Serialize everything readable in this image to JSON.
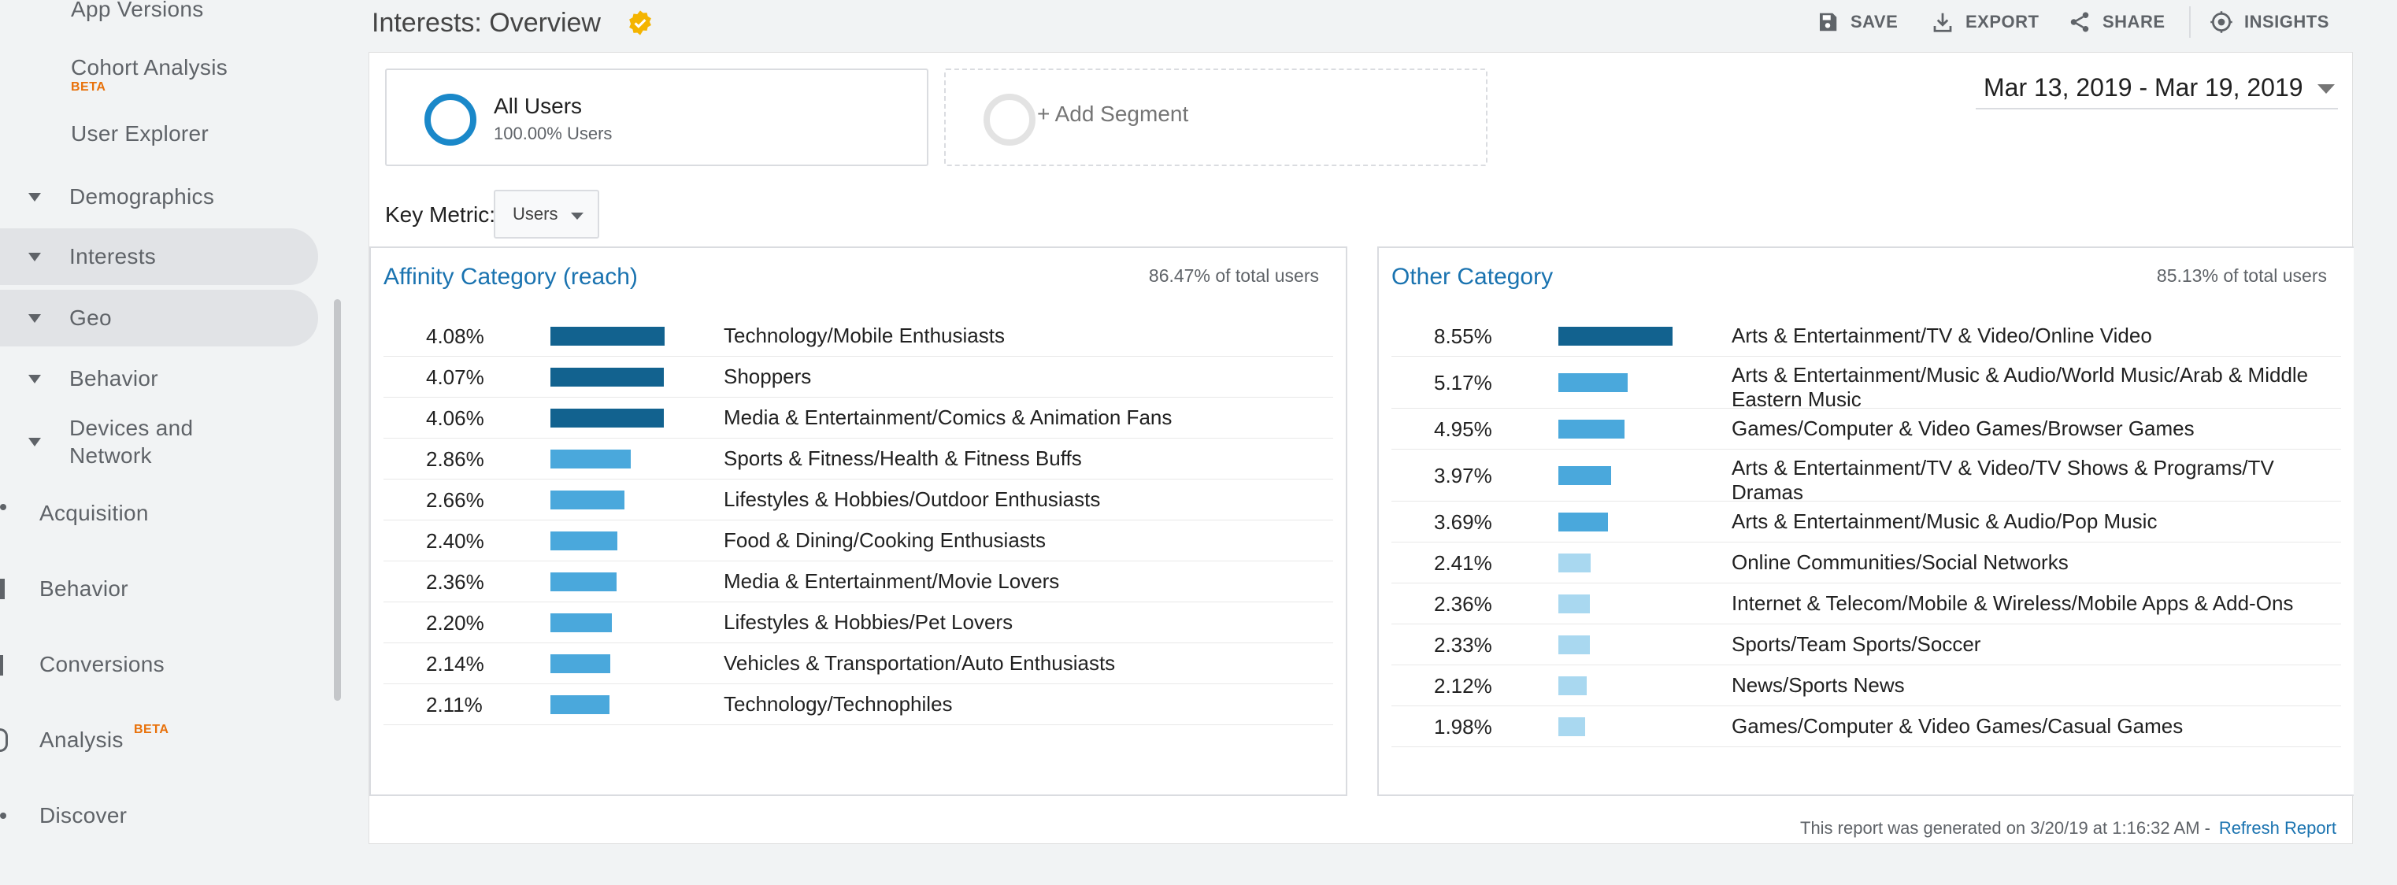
{
  "sidebar": {
    "items": [
      {
        "label": "App Versions",
        "kind": "sub"
      },
      {
        "label": "Cohort Analysis",
        "kind": "sub",
        "badge": "BETA"
      },
      {
        "label": "User Explorer",
        "kind": "sub"
      },
      {
        "label": "Demographics",
        "kind": "group"
      },
      {
        "label": "Interests",
        "kind": "group",
        "highlighted": true
      },
      {
        "label": "Geo",
        "kind": "group",
        "highlighted": true
      },
      {
        "label": "Behavior",
        "kind": "group"
      },
      {
        "label": "Devices and Network",
        "kind": "group"
      },
      {
        "label": "Acquisition",
        "kind": "top"
      },
      {
        "label": "Behavior",
        "kind": "top"
      },
      {
        "label": "Conversions",
        "kind": "top"
      },
      {
        "label": "Analysis",
        "kind": "top",
        "badge": "BETA"
      },
      {
        "label": "Discover",
        "kind": "top"
      }
    ]
  },
  "header": {
    "title": "Interests: Overview",
    "toolbar": [
      {
        "label": "SAVE",
        "icon": "save-icon"
      },
      {
        "label": "EXPORT",
        "icon": "export-icon"
      },
      {
        "label": "SHARE",
        "icon": "share-icon"
      },
      {
        "label": "INSIGHTS",
        "icon": "insights-icon"
      }
    ]
  },
  "segments": {
    "all_users": {
      "name": "All Users",
      "percent": "100.00% Users"
    },
    "add_segment": "+ Add Segment"
  },
  "date_range": "Mar 13, 2019 - Mar 19, 2019",
  "key_metric": {
    "label": "Key Metric:",
    "value": "Users"
  },
  "colors": {
    "bar_dark": "#12628f",
    "bar_mid": "#4aa8dc",
    "bar_light": "#a9d8f0",
    "link": "#1a73b0",
    "badge": "#e8710a"
  },
  "affinity": {
    "title": "Affinity Category (reach)",
    "share": "86.47% of total users",
    "rows": [
      {
        "pct": "4.08%",
        "value": 4.08,
        "label": "Technology/Mobile Enthusiasts"
      },
      {
        "pct": "4.07%",
        "value": 4.07,
        "label": "Shoppers"
      },
      {
        "pct": "4.06%",
        "value": 4.06,
        "label": "Media & Entertainment/Comics & Animation Fans"
      },
      {
        "pct": "2.86%",
        "value": 2.86,
        "label": "Sports & Fitness/Health & Fitness Buffs"
      },
      {
        "pct": "2.66%",
        "value": 2.66,
        "label": "Lifestyles & Hobbies/Outdoor Enthusiasts"
      },
      {
        "pct": "2.40%",
        "value": 2.4,
        "label": "Food & Dining/Cooking Enthusiasts"
      },
      {
        "pct": "2.36%",
        "value": 2.36,
        "label": "Media & Entertainment/Movie Lovers"
      },
      {
        "pct": "2.20%",
        "value": 2.2,
        "label": "Lifestyles & Hobbies/Pet Lovers"
      },
      {
        "pct": "2.14%",
        "value": 2.14,
        "label": "Vehicles & Transportation/Auto Enthusiasts"
      },
      {
        "pct": "2.11%",
        "value": 2.11,
        "label": "Technology/Technophiles"
      }
    ]
  },
  "other": {
    "title": "Other Category",
    "share": "85.13% of total users",
    "rows": [
      {
        "pct": "8.55%",
        "value": 8.55,
        "label": "Arts & Entertainment/TV & Video/Online Video"
      },
      {
        "pct": "5.17%",
        "value": 5.17,
        "label": "Arts & Entertainment/Music & Audio/World Music/Arab & Middle Eastern Music"
      },
      {
        "pct": "4.95%",
        "value": 4.95,
        "label": "Games/Computer & Video Games/Browser Games"
      },
      {
        "pct": "3.97%",
        "value": 3.97,
        "label": "Arts & Entertainment/TV & Video/TV Shows & Programs/TV Dramas"
      },
      {
        "pct": "3.69%",
        "value": 3.69,
        "label": "Arts & Entertainment/Music & Audio/Pop Music"
      },
      {
        "pct": "2.41%",
        "value": 2.41,
        "label": "Online Communities/Social Networks"
      },
      {
        "pct": "2.36%",
        "value": 2.36,
        "label": "Internet & Telecom/Mobile & Wireless/Mobile Apps & Add-Ons"
      },
      {
        "pct": "2.33%",
        "value": 2.33,
        "label": "Sports/Team Sports/Soccer"
      },
      {
        "pct": "2.12%",
        "value": 2.12,
        "label": "News/Sports News"
      },
      {
        "pct": "1.98%",
        "value": 1.98,
        "label": "Games/Computer & Video Games/Casual Games"
      }
    ]
  },
  "footer": {
    "generated": "This report was generated on 3/20/19 at 1:16:32 AM -",
    "refresh": "Refresh Report"
  }
}
